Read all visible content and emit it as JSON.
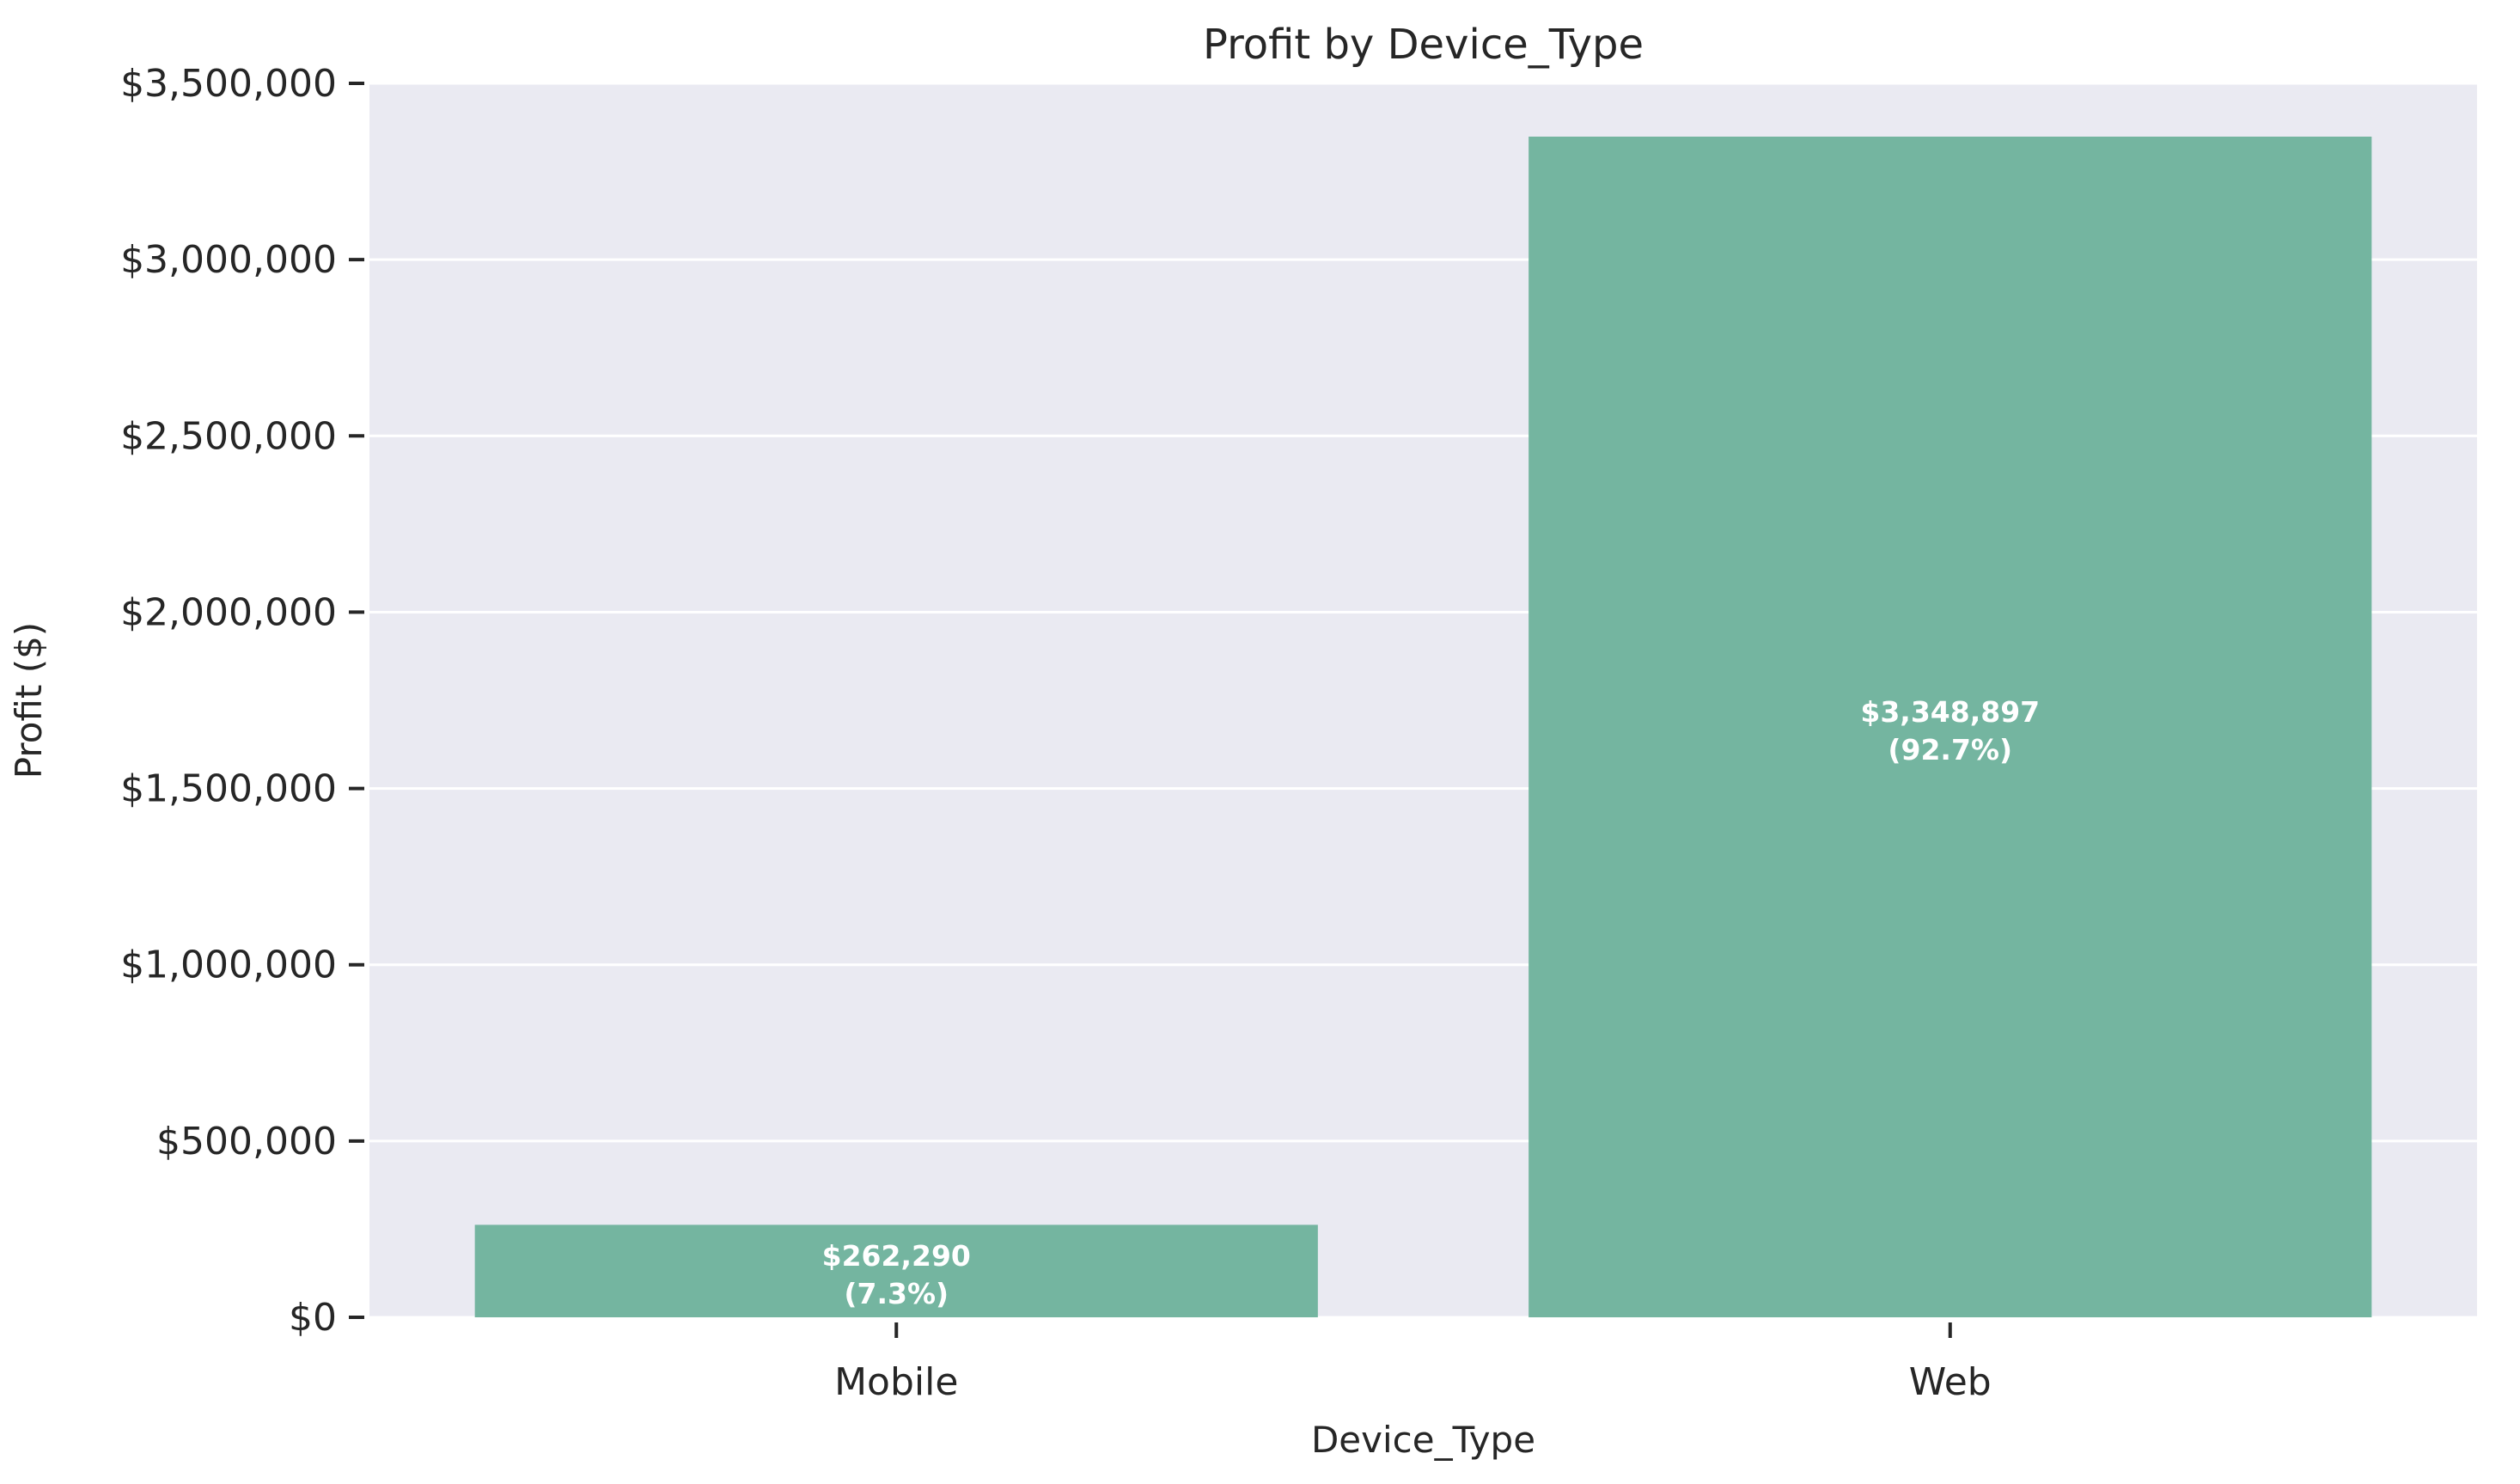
{
  "chart_data": {
    "type": "bar",
    "title": "Profit by Device_Type",
    "xlabel": "Device_Type",
    "ylabel": "Profit ($)",
    "categories": [
      "Mobile",
      "Web"
    ],
    "values": [
      262290,
      3348897
    ],
    "value_labels": [
      "$262,290",
      "$3,348,897"
    ],
    "percent_labels": [
      "(7.3%)",
      "(92.7%)"
    ],
    "ylim": [
      0,
      3500000
    ],
    "yticks": [
      0,
      500000,
      1000000,
      1500000,
      2000000,
      2500000,
      3000000,
      3500000
    ],
    "ytick_labels": [
      "$0",
      "$500,000",
      "$1,000,000",
      "$1,500,000",
      "$2,000,000",
      "$2,500,000",
      "$3,000,000",
      "$3,500,000"
    ],
    "grid": true,
    "bar_color": "#74b5a0",
    "plot_background": "#eaeaf2",
    "grid_color": "#ffffff"
  }
}
